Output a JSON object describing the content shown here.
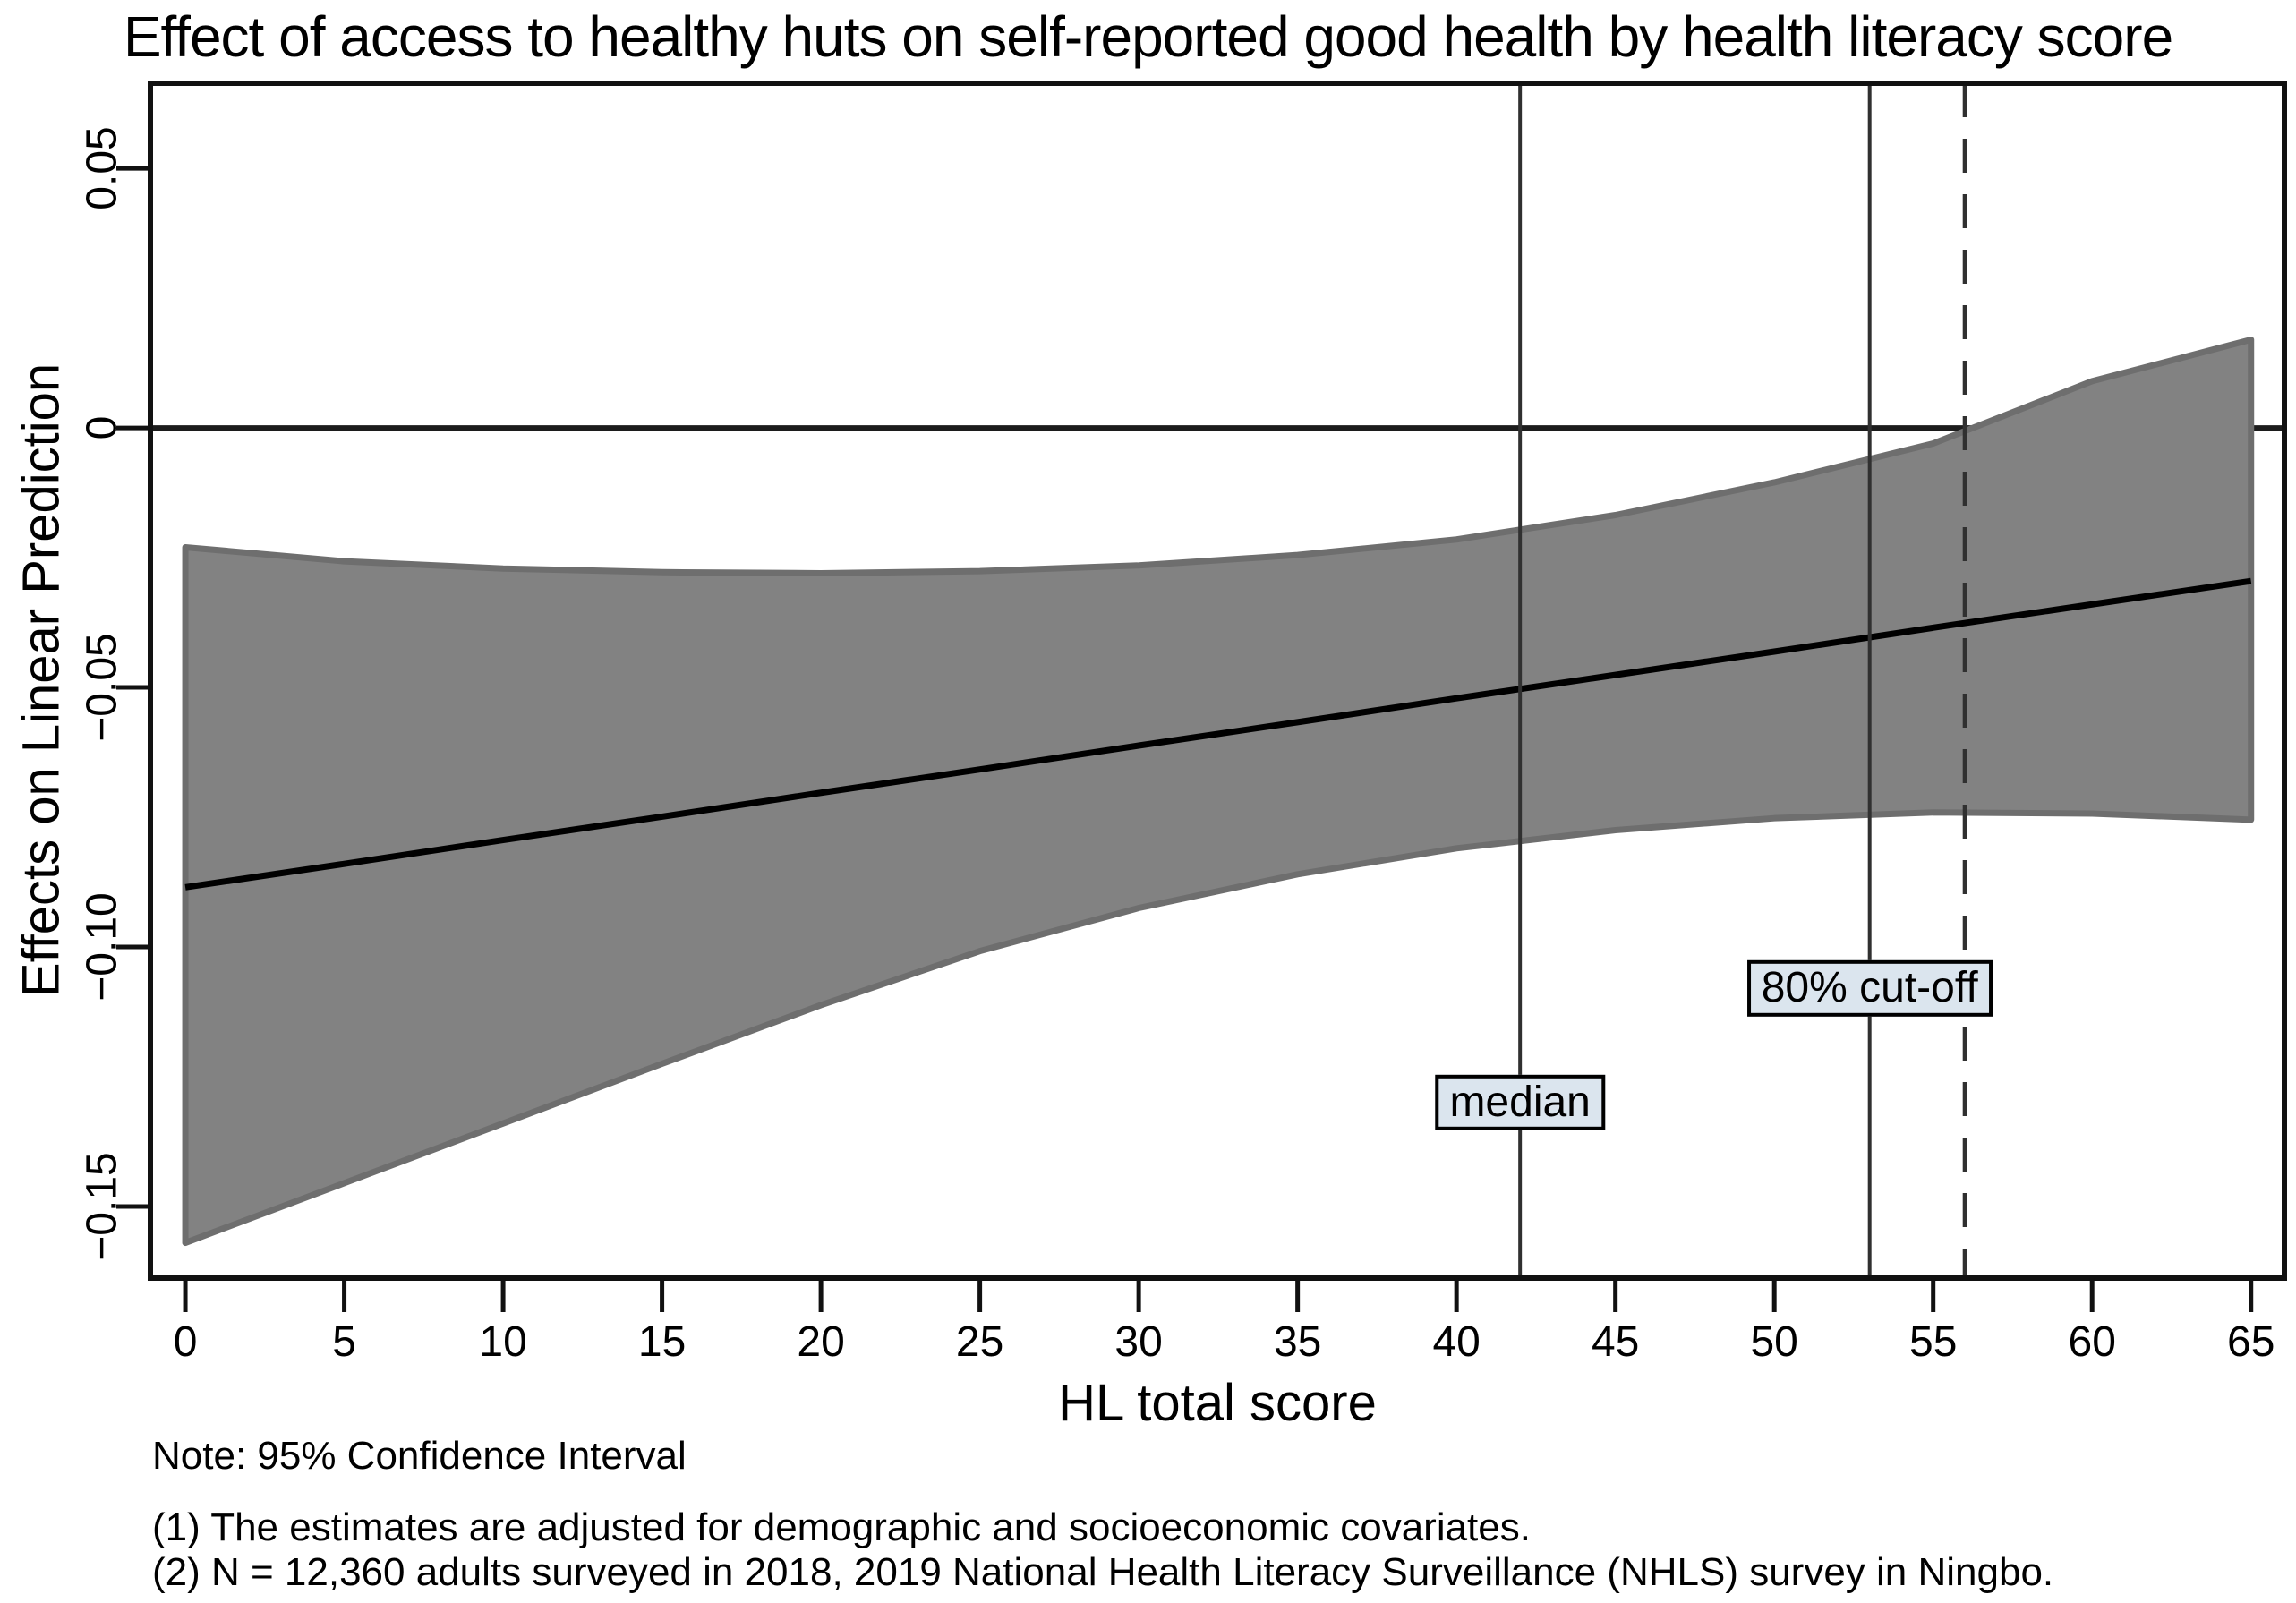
{
  "chart_data": {
    "type": "area",
    "title": "Effect of access to healthy huts on self-reported good health by health literacy score",
    "xlabel": "HL total score",
    "ylabel": "Effects on Linear Prediction",
    "x": [
      0,
      5,
      10,
      15,
      20,
      25,
      30,
      35,
      40,
      45,
      50,
      55,
      60,
      65
    ],
    "series": [
      {
        "name": "upper_95ci",
        "values": [
          -0.023,
          -0.0257,
          -0.0271,
          -0.0278,
          -0.028,
          -0.0276,
          -0.0265,
          -0.0245,
          -0.0215,
          -0.0168,
          -0.0105,
          -0.003,
          0.009,
          0.017
        ]
      },
      {
        "name": "effect",
        "values": [
          -0.0885,
          -0.084,
          -0.0794,
          -0.0749,
          -0.0703,
          -0.0658,
          -0.0612,
          -0.0567,
          -0.0521,
          -0.0476,
          -0.0431,
          -0.0385,
          -0.034,
          -0.0295
        ]
      },
      {
        "name": "lower_95ci",
        "values": [
          -0.157,
          -0.1455,
          -0.134,
          -0.1225,
          -0.1112,
          -0.1008,
          -0.0925,
          -0.086,
          -0.081,
          -0.0775,
          -0.0752,
          -0.0741,
          -0.0743,
          -0.0755
        ]
      }
    ],
    "x_ticks": [
      0,
      5,
      10,
      15,
      20,
      25,
      30,
      35,
      40,
      45,
      50,
      55,
      60,
      65
    ],
    "y_ticks": [
      {
        "value": 0.05,
        "label": "0.05"
      },
      {
        "value": 0,
        "label": "0"
      },
      {
        "value": -0.05,
        "label": "−0.05"
      },
      {
        "value": -0.1,
        "label": "−0.10"
      },
      {
        "value": -0.15,
        "label": "−0.15"
      }
    ],
    "xlim": [
      -1.1,
      66.05
    ],
    "ylim": [
      -0.1638,
      0.0664
    ],
    "grid": false,
    "legend": "none",
    "reference_lines": [
      {
        "axis": "y",
        "value": 0,
        "style": "solid"
      },
      {
        "axis": "x",
        "value": 42,
        "style": "solid",
        "label": "median",
        "label_y": -0.13
      },
      {
        "axis": "x",
        "value": 53,
        "style": "solid",
        "label": "80% cut-off",
        "label_y": -0.108
      },
      {
        "axis": "x",
        "value": 56,
        "style": "dashed"
      }
    ],
    "colors": {
      "band_fill": "#828282",
      "band_edge": "#6e6e6e",
      "effect_line": "#000000",
      "axis": "#111111",
      "zero_line": "#1c1c1c",
      "ref_line": "#303030",
      "label_box_fill": "#dbe5ee",
      "label_box_border": "#000000"
    }
  },
  "notes": {
    "line1": "Note: 95% Confidence Interval",
    "line2": "(1) The estimates are adjusted for demographic and socioeconomic covariates.",
    "line3": "(2) N = 12,360 adults surveyed in 2018, 2019 National Health Literacy Surveillance (NHLS) survey in Ningbo."
  }
}
